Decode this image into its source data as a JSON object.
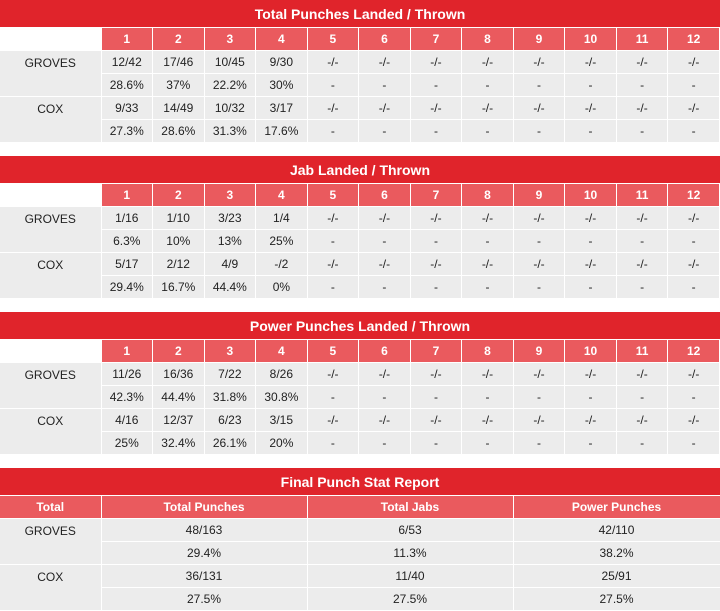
{
  "rounds": [
    "1",
    "2",
    "3",
    "4",
    "5",
    "6",
    "7",
    "8",
    "9",
    "10",
    "11",
    "12"
  ],
  "sections": [
    {
      "title": "Total Punches Landed / Thrown",
      "fighters": [
        {
          "name": "GROVES",
          "landed": [
            "12/42",
            "17/46",
            "10/45",
            "9/30",
            "-/-",
            "-/-",
            "-/-",
            "-/-",
            "-/-",
            "-/-",
            "-/-",
            "-/-"
          ],
          "pct": [
            "28.6%",
            "37%",
            "22.2%",
            "30%",
            "-",
            "-",
            "-",
            "-",
            "-",
            "-",
            "-",
            "-"
          ]
        },
        {
          "name": "COX",
          "landed": [
            "9/33",
            "14/49",
            "10/32",
            "3/17",
            "-/-",
            "-/-",
            "-/-",
            "-/-",
            "-/-",
            "-/-",
            "-/-",
            "-/-"
          ],
          "pct": [
            "27.3%",
            "28.6%",
            "31.3%",
            "17.6%",
            "-",
            "-",
            "-",
            "-",
            "-",
            "-",
            "-",
            "-"
          ]
        }
      ]
    },
    {
      "title": "Jab Landed / Thrown",
      "fighters": [
        {
          "name": "GROVES",
          "landed": [
            "1/16",
            "1/10",
            "3/23",
            "1/4",
            "-/-",
            "-/-",
            "-/-",
            "-/-",
            "-/-",
            "-/-",
            "-/-",
            "-/-"
          ],
          "pct": [
            "6.3%",
            "10%",
            "13%",
            "25%",
            "-",
            "-",
            "-",
            "-",
            "-",
            "-",
            "-",
            "-"
          ]
        },
        {
          "name": "COX",
          "landed": [
            "5/17",
            "2/12",
            "4/9",
            "-/2",
            "-/-",
            "-/-",
            "-/-",
            "-/-",
            "-/-",
            "-/-",
            "-/-",
            "-/-"
          ],
          "pct": [
            "29.4%",
            "16.7%",
            "44.4%",
            "0%",
            "-",
            "-",
            "-",
            "-",
            "-",
            "-",
            "-",
            "-"
          ]
        }
      ]
    },
    {
      "title": "Power Punches Landed / Thrown",
      "fighters": [
        {
          "name": "GROVES",
          "landed": [
            "11/26",
            "16/36",
            "7/22",
            "8/26",
            "-/-",
            "-/-",
            "-/-",
            "-/-",
            "-/-",
            "-/-",
            "-/-",
            "-/-"
          ],
          "pct": [
            "42.3%",
            "44.4%",
            "31.8%",
            "30.8%",
            "-",
            "-",
            "-",
            "-",
            "-",
            "-",
            "-",
            "-"
          ]
        },
        {
          "name": "COX",
          "landed": [
            "4/16",
            "12/37",
            "6/23",
            "3/15",
            "-/-",
            "-/-",
            "-/-",
            "-/-",
            "-/-",
            "-/-",
            "-/-",
            "-/-"
          ],
          "pct": [
            "25%",
            "32.4%",
            "26.1%",
            "20%",
            "-",
            "-",
            "-",
            "-",
            "-",
            "-",
            "-",
            "-"
          ]
        }
      ]
    }
  ],
  "summary": {
    "title": "Final Punch Stat Report",
    "headers": [
      "Total",
      "Total Punches",
      "Total Jabs",
      "Power Punches"
    ],
    "fighters": [
      {
        "name": "GROVES",
        "totals": [
          "48/163",
          "6/53",
          "42/110"
        ],
        "pcts": [
          "29.4%",
          "11.3%",
          "38.2%"
        ]
      },
      {
        "name": "COX",
        "totals": [
          "36/131",
          "11/40",
          "25/91"
        ],
        "pcts": [
          "27.5%",
          "27.5%",
          "27.5%"
        ]
      }
    ]
  }
}
